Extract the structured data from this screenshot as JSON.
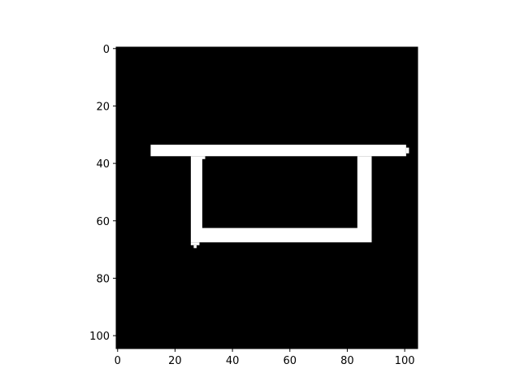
{
  "image": {
    "description_type": "binary mask image shown with matplotlib axes",
    "background_color": "#000000",
    "foreground_color": "#ffffff",
    "data_extent": {
      "x": [
        -0.5,
        104.5
      ],
      "y": [
        -0.5,
        104.5
      ]
    },
    "shapes": [
      {
        "name": "top-bar",
        "x": [
          11.5,
          100.5
        ],
        "y": [
          33.5,
          37.5
        ]
      },
      {
        "name": "top-bar-right-nub",
        "x": [
          100.5,
          101.5
        ],
        "y": [
          34.5,
          36.5
        ]
      },
      {
        "name": "left-post",
        "x": [
          25.5,
          29.5
        ],
        "y": [
          37.5,
          67.5
        ]
      },
      {
        "name": "left-post-inner-lip",
        "x": [
          29.5,
          30.5
        ],
        "y": [
          37.5,
          38.5
        ]
      },
      {
        "name": "right-post",
        "x": [
          83.5,
          88.5
        ],
        "y": [
          37.5,
          63.5
        ]
      },
      {
        "name": "bottom-bar",
        "x": [
          29.5,
          88.5
        ],
        "y": [
          62.5,
          67.5
        ]
      },
      {
        "name": "bottom-left-stub",
        "x": [
          25.5,
          28.5
        ],
        "y": [
          67.5,
          68.5
        ]
      },
      {
        "name": "bottom-left-stub-2",
        "x": [
          26.5,
          27.5
        ],
        "y": [
          68.5,
          69.5
        ]
      }
    ]
  },
  "x_axis": {
    "ticks": [
      0,
      20,
      40,
      60,
      80,
      100
    ],
    "tick_labels": [
      "0",
      "20",
      "40",
      "60",
      "80",
      "100"
    ]
  },
  "y_axis": {
    "ticks": [
      0,
      20,
      40,
      60,
      80,
      100
    ],
    "tick_labels": [
      "0",
      "20",
      "40",
      "60",
      "80",
      "100"
    ]
  }
}
